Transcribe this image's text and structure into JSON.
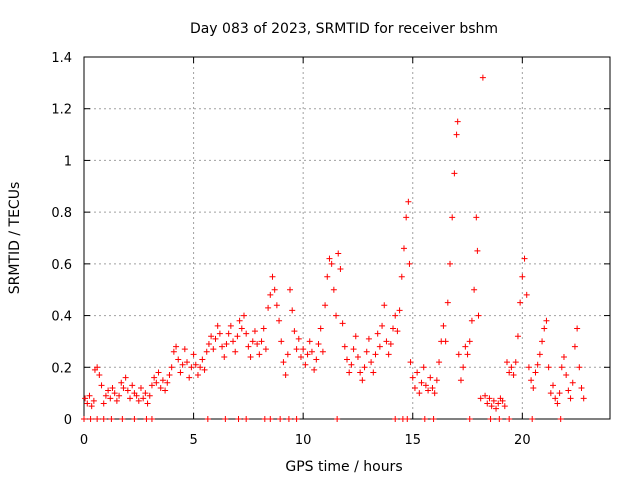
{
  "chart_data": {
    "type": "scatter",
    "title": "Day 083 of 2023, SRMTID for receiver bshm",
    "xlabel": "GPS time / hours",
    "ylabel": "SRMTID / TECUs",
    "xlim": [
      0,
      24
    ],
    "ylim": [
      0,
      1.4
    ],
    "xticks": [
      0,
      5,
      10,
      15,
      20
    ],
    "xtick_labels": [
      "0",
      "5",
      "10",
      "15",
      "20"
    ],
    "yticks": [
      0,
      0.2,
      0.4,
      0.6,
      0.8,
      1,
      1.2,
      1.4
    ],
    "ytick_labels": [
      "0",
      "0.2",
      "0.4",
      "0.6",
      "0.8",
      "1",
      "1.2",
      "1.4"
    ],
    "grid": true,
    "marker": "+",
    "series": [
      {
        "name": "SRMTID",
        "color": "#ff0000",
        "points": [
          [
            0.05,
            0.08
          ],
          [
            0.15,
            0.06
          ],
          [
            0.25,
            0.09
          ],
          [
            0.35,
            0.05
          ],
          [
            0.45,
            0.07
          ],
          [
            0.5,
            0.19
          ],
          [
            0.6,
            0.2
          ],
          [
            0.7,
            0.17
          ],
          [
            0.8,
            0.13
          ],
          [
            0.9,
            0.06
          ],
          [
            1.0,
            0.09
          ],
          [
            1.1,
            0.11
          ],
          [
            1.2,
            0.08
          ],
          [
            1.3,
            0.12
          ],
          [
            1.4,
            0.1
          ],
          [
            1.5,
            0.07
          ],
          [
            1.6,
            0.09
          ],
          [
            1.7,
            0.14
          ],
          [
            1.8,
            0.12
          ],
          [
            1.9,
            0.16
          ],
          [
            2.0,
            0.11
          ],
          [
            2.1,
            0.08
          ],
          [
            2.2,
            0.13
          ],
          [
            2.3,
            0.1
          ],
          [
            2.4,
            0.09
          ],
          [
            2.5,
            0.07
          ],
          [
            2.6,
            0.12
          ],
          [
            2.7,
            0.08
          ],
          [
            2.8,
            0.1
          ],
          [
            2.9,
            0.06
          ],
          [
            3.0,
            0.09
          ],
          [
            3.1,
            0.13
          ],
          [
            3.2,
            0.16
          ],
          [
            3.3,
            0.14
          ],
          [
            3.4,
            0.18
          ],
          [
            3.5,
            0.12
          ],
          [
            3.6,
            0.15
          ],
          [
            3.7,
            0.11
          ],
          [
            3.8,
            0.14
          ],
          [
            3.9,
            0.17
          ],
          [
            4.0,
            0.2
          ],
          [
            4.1,
            0.26
          ],
          [
            4.2,
            0.28
          ],
          [
            4.3,
            0.23
          ],
          [
            4.4,
            0.18
          ],
          [
            4.5,
            0.21
          ],
          [
            4.6,
            0.27
          ],
          [
            4.7,
            0.22
          ],
          [
            4.8,
            0.16
          ],
          [
            4.9,
            0.2
          ],
          [
            5.0,
            0.25
          ],
          [
            5.1,
            0.21
          ],
          [
            5.2,
            0.17
          ],
          [
            5.3,
            0.2
          ],
          [
            5.4,
            0.23
          ],
          [
            5.5,
            0.19
          ],
          [
            5.6,
            0.26
          ],
          [
            5.7,
            0.29
          ],
          [
            5.8,
            0.32
          ],
          [
            5.9,
            0.27
          ],
          [
            6.0,
            0.31
          ],
          [
            6.1,
            0.36
          ],
          [
            6.2,
            0.33
          ],
          [
            6.3,
            0.28
          ],
          [
            6.4,
            0.24
          ],
          [
            6.5,
            0.29
          ],
          [
            6.6,
            0.33
          ],
          [
            6.7,
            0.36
          ],
          [
            6.8,
            0.3
          ],
          [
            6.9,
            0.26
          ],
          [
            7.0,
            0.32
          ],
          [
            7.1,
            0.38
          ],
          [
            7.2,
            0.35
          ],
          [
            7.3,
            0.4
          ],
          [
            7.4,
            0.33
          ],
          [
            7.5,
            0.28
          ],
          [
            7.6,
            0.24
          ],
          [
            7.7,
            0.3
          ],
          [
            7.8,
            0.34
          ],
          [
            7.9,
            0.29
          ],
          [
            8.0,
            0.25
          ],
          [
            8.1,
            0.3
          ],
          [
            8.2,
            0.35
          ],
          [
            8.3,
            0.27
          ],
          [
            8.4,
            0.43
          ],
          [
            8.5,
            0.48
          ],
          [
            8.6,
            0.55
          ],
          [
            8.7,
            0.5
          ],
          [
            8.8,
            0.44
          ],
          [
            8.9,
            0.38
          ],
          [
            9.0,
            0.3
          ],
          [
            9.1,
            0.22
          ],
          [
            9.2,
            0.17
          ],
          [
            9.3,
            0.25
          ],
          [
            9.4,
            0.5
          ],
          [
            9.5,
            0.42
          ],
          [
            9.6,
            0.34
          ],
          [
            9.7,
            0.27
          ],
          [
            9.8,
            0.31
          ],
          [
            9.9,
            0.24
          ],
          [
            10.0,
            0.27
          ],
          [
            10.1,
            0.21
          ],
          [
            10.2,
            0.25
          ],
          [
            10.3,
            0.3
          ],
          [
            10.4,
            0.26
          ],
          [
            10.5,
            0.19
          ],
          [
            10.6,
            0.23
          ],
          [
            10.7,
            0.29
          ],
          [
            10.8,
            0.35
          ],
          [
            10.9,
            0.26
          ],
          [
            11.0,
            0.44
          ],
          [
            11.1,
            0.55
          ],
          [
            11.2,
            0.62
          ],
          [
            11.3,
            0.6
          ],
          [
            11.4,
            0.5
          ],
          [
            11.5,
            0.4
          ],
          [
            11.6,
            0.64
          ],
          [
            11.7,
            0.58
          ],
          [
            11.8,
            0.37
          ],
          [
            11.9,
            0.28
          ],
          [
            12.0,
            0.23
          ],
          [
            12.1,
            0.18
          ],
          [
            12.2,
            0.21
          ],
          [
            12.3,
            0.27
          ],
          [
            12.4,
            0.32
          ],
          [
            12.5,
            0.24
          ],
          [
            12.6,
            0.18
          ],
          [
            12.7,
            0.15
          ],
          [
            12.8,
            0.2
          ],
          [
            12.9,
            0.26
          ],
          [
            13.0,
            0.31
          ],
          [
            13.1,
            0.22
          ],
          [
            13.2,
            0.18
          ],
          [
            13.3,
            0.25
          ],
          [
            13.4,
            0.33
          ],
          [
            13.5,
            0.28
          ],
          [
            13.6,
            0.36
          ],
          [
            13.7,
            0.44
          ],
          [
            13.8,
            0.3
          ],
          [
            13.9,
            0.25
          ],
          [
            14.0,
            0.29
          ],
          [
            14.1,
            0.35
          ],
          [
            14.2,
            0.4
          ],
          [
            14.3,
            0.34
          ],
          [
            14.4,
            0.42
          ],
          [
            14.5,
            0.55
          ],
          [
            14.6,
            0.66
          ],
          [
            14.7,
            0.78
          ],
          [
            14.8,
            0.84
          ],
          [
            14.85,
            0.6
          ],
          [
            14.9,
            0.22
          ],
          [
            15.0,
            0.16
          ],
          [
            15.1,
            0.12
          ],
          [
            15.2,
            0.18
          ],
          [
            15.3,
            0.1
          ],
          [
            15.4,
            0.14
          ],
          [
            15.5,
            0.2
          ],
          [
            15.6,
            0.13
          ],
          [
            15.7,
            0.11
          ],
          [
            15.8,
            0.16
          ],
          [
            15.9,
            0.12
          ],
          [
            16.0,
            0.1
          ],
          [
            16.1,
            0.15
          ],
          [
            16.2,
            0.22
          ],
          [
            16.3,
            0.3
          ],
          [
            16.4,
            0.36
          ],
          [
            16.5,
            0.3
          ],
          [
            16.6,
            0.45
          ],
          [
            16.7,
            0.6
          ],
          [
            16.8,
            0.78
          ],
          [
            16.9,
            0.95
          ],
          [
            17.0,
            1.1
          ],
          [
            17.05,
            1.15
          ],
          [
            17.1,
            0.25
          ],
          [
            17.2,
            0.15
          ],
          [
            17.3,
            0.2
          ],
          [
            17.4,
            0.28
          ],
          [
            17.5,
            0.25
          ],
          [
            17.6,
            0.3
          ],
          [
            17.7,
            0.38
          ],
          [
            17.8,
            0.5
          ],
          [
            17.9,
            0.78
          ],
          [
            17.95,
            0.65
          ],
          [
            18.0,
            0.4
          ],
          [
            18.1,
            0.08
          ],
          [
            18.2,
            1.32
          ],
          [
            18.3,
            0.09
          ],
          [
            18.4,
            0.06
          ],
          [
            18.5,
            0.08
          ],
          [
            18.6,
            0.05
          ],
          [
            18.7,
            0.07
          ],
          [
            18.8,
            0.04
          ],
          [
            18.9,
            0.06
          ],
          [
            19.0,
            0.08
          ],
          [
            19.1,
            0.07
          ],
          [
            19.2,
            0.05
          ],
          [
            19.3,
            0.22
          ],
          [
            19.4,
            0.18
          ],
          [
            19.5,
            0.2
          ],
          [
            19.6,
            0.17
          ],
          [
            19.7,
            0.22
          ],
          [
            19.8,
            0.32
          ],
          [
            19.9,
            0.45
          ],
          [
            20.0,
            0.55
          ],
          [
            20.1,
            0.62
          ],
          [
            20.2,
            0.48
          ],
          [
            20.3,
            0.2
          ],
          [
            20.4,
            0.15
          ],
          [
            20.5,
            0.12
          ],
          [
            20.6,
            0.18
          ],
          [
            20.7,
            0.21
          ],
          [
            20.8,
            0.25
          ],
          [
            20.9,
            0.3
          ],
          [
            21.0,
            0.35
          ],
          [
            21.1,
            0.38
          ],
          [
            21.2,
            0.2
          ],
          [
            21.3,
            0.1
          ],
          [
            21.4,
            0.13
          ],
          [
            21.5,
            0.08
          ],
          [
            21.6,
            0.06
          ],
          [
            21.7,
            0.1
          ],
          [
            21.8,
            0.2
          ],
          [
            21.9,
            0.24
          ],
          [
            22.0,
            0.17
          ],
          [
            22.1,
            0.11
          ],
          [
            22.2,
            0.08
          ],
          [
            22.3,
            0.14
          ],
          [
            22.4,
            0.28
          ],
          [
            22.5,
            0.35
          ],
          [
            22.6,
            0.2
          ],
          [
            22.7,
            0.12
          ],
          [
            22.8,
            0.08
          ],
          [
            0.0,
            0.0
          ],
          [
            0.3,
            0.0
          ],
          [
            0.6,
            0.0
          ],
          [
            0.9,
            0.0
          ],
          [
            1.25,
            0.0
          ],
          [
            1.75,
            0.0
          ],
          [
            2.3,
            0.0
          ],
          [
            2.85,
            0.0
          ],
          [
            3.1,
            0.0
          ],
          [
            5.65,
            0.0
          ],
          [
            6.45,
            0.0
          ],
          [
            7.05,
            0.0
          ],
          [
            7.4,
            0.0
          ],
          [
            8.25,
            0.0
          ],
          [
            8.5,
            0.0
          ],
          [
            8.95,
            0.0
          ],
          [
            9.35,
            0.0
          ],
          [
            9.7,
            0.0
          ],
          [
            11.55,
            0.0
          ],
          [
            14.2,
            0.0
          ],
          [
            14.55,
            0.0
          ],
          [
            14.75,
            0.0
          ],
          [
            15.55,
            0.0
          ],
          [
            15.95,
            0.0
          ],
          [
            17.6,
            0.0
          ],
          [
            18.55,
            0.0
          ],
          [
            18.95,
            0.0
          ],
          [
            19.4,
            0.0
          ],
          [
            20.45,
            0.0
          ],
          [
            21.75,
            0.0
          ]
        ]
      }
    ]
  }
}
